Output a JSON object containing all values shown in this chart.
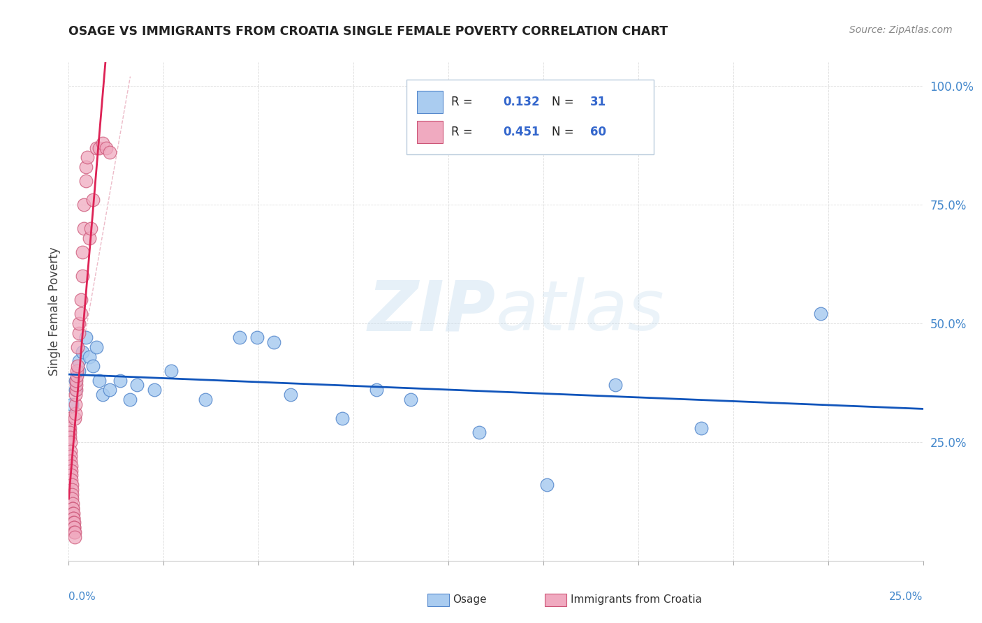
{
  "title": "OSAGE VS IMMIGRANTS FROM CROATIA SINGLE FEMALE POVERTY CORRELATION CHART",
  "source": "Source: ZipAtlas.com",
  "ylabel": "Single Female Poverty",
  "xlim": [
    0.0,
    0.25
  ],
  "ylim": [
    0.0,
    1.05
  ],
  "yticks": [
    0.0,
    0.25,
    0.5,
    0.75,
    1.0
  ],
  "ytick_labels": [
    "",
    "25.0%",
    "50.0%",
    "75.0%",
    "100.0%"
  ],
  "legend_labels": [
    "Osage",
    "Immigrants from Croatia"
  ],
  "osage_color": "#aaccf0",
  "croatia_color": "#f0aac0",
  "osage_edge": "#5588cc",
  "croatia_edge": "#cc5577",
  "trend_osage_color": "#1155bb",
  "trend_croatia_color": "#dd2255",
  "ref_line_color": "#ddaacc",
  "background_color": "#ffffff",
  "watermark_zip": "ZIP",
  "watermark_atlas": "atlas",
  "grid_color": "#dddddd",
  "osage_x": [
    0.001,
    0.002,
    0.002,
    0.003,
    0.003,
    0.004,
    0.005,
    0.006,
    0.007,
    0.008,
    0.009,
    0.01,
    0.012,
    0.015,
    0.018,
    0.02,
    0.025,
    0.03,
    0.04,
    0.05,
    0.055,
    0.06,
    0.065,
    0.08,
    0.09,
    0.1,
    0.12,
    0.14,
    0.16,
    0.185,
    0.22
  ],
  "osage_y": [
    0.33,
    0.36,
    0.38,
    0.4,
    0.42,
    0.44,
    0.47,
    0.43,
    0.41,
    0.45,
    0.38,
    0.35,
    0.36,
    0.38,
    0.34,
    0.37,
    0.36,
    0.4,
    0.34,
    0.47,
    0.47,
    0.46,
    0.35,
    0.3,
    0.36,
    0.34,
    0.27,
    0.16,
    0.37,
    0.28,
    0.52
  ],
  "croatia_x": [
    0.0002,
    0.0003,
    0.0004,
    0.0004,
    0.0005,
    0.0005,
    0.0006,
    0.0006,
    0.0007,
    0.0007,
    0.0008,
    0.0008,
    0.0009,
    0.0009,
    0.001,
    0.001,
    0.0011,
    0.0011,
    0.0012,
    0.0012,
    0.0013,
    0.0013,
    0.0014,
    0.0014,
    0.0015,
    0.0015,
    0.0016,
    0.0016,
    0.0017,
    0.0017,
    0.0018,
    0.0019,
    0.002,
    0.002,
    0.0021,
    0.0022,
    0.0022,
    0.0023,
    0.0024,
    0.0025,
    0.0025,
    0.003,
    0.003,
    0.0035,
    0.0035,
    0.004,
    0.004,
    0.0045,
    0.0045,
    0.005,
    0.005,
    0.0055,
    0.006,
    0.0065,
    0.007,
    0.008,
    0.009,
    0.01,
    0.011,
    0.012
  ],
  "croatia_y": [
    0.3,
    0.28,
    0.27,
    0.26,
    0.25,
    0.23,
    0.22,
    0.21,
    0.2,
    0.19,
    0.18,
    0.17,
    0.16,
    0.15,
    0.14,
    0.13,
    0.12,
    0.11,
    0.11,
    0.1,
    0.1,
    0.09,
    0.09,
    0.08,
    0.08,
    0.07,
    0.07,
    0.06,
    0.06,
    0.05,
    0.3,
    0.31,
    0.33,
    0.35,
    0.36,
    0.37,
    0.38,
    0.39,
    0.4,
    0.41,
    0.45,
    0.48,
    0.5,
    0.52,
    0.55,
    0.6,
    0.65,
    0.7,
    0.75,
    0.8,
    0.83,
    0.85,
    0.68,
    0.7,
    0.76,
    0.87,
    0.87,
    0.88,
    0.87,
    0.86
  ]
}
